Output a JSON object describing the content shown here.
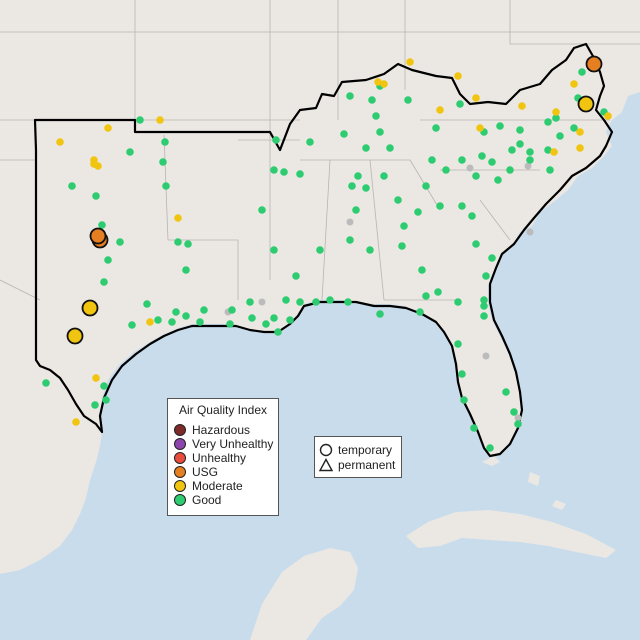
{
  "map": {
    "ocean_color": "#c9dceb",
    "land_color": "#ebe8e4",
    "region_outline_color": "#000000"
  },
  "legend_aqi": {
    "title": "Air Quality Index",
    "items": [
      {
        "label": "Hazardous",
        "color": "#7e2a2a"
      },
      {
        "label": "Very Unhealthy",
        "color": "#8e44ad"
      },
      {
        "label": "Unhealthy",
        "color": "#e74c3c"
      },
      {
        "label": "USG",
        "color": "#e67e22"
      },
      {
        "label": "Moderate",
        "color": "#f1c40f"
      },
      {
        "label": "Good",
        "color": "#2ecc71"
      }
    ]
  },
  "legend_sites": {
    "items": [
      {
        "label": "temporary",
        "icon": "circle-icon"
      },
      {
        "label": "permanent",
        "icon": "triangle-icon"
      }
    ]
  },
  "monitor_colors": {
    "good": "#2ecc71",
    "moderate": "#f1c40f",
    "usg": "#e67e22",
    "no_data": "#bbbbbb"
  }
}
